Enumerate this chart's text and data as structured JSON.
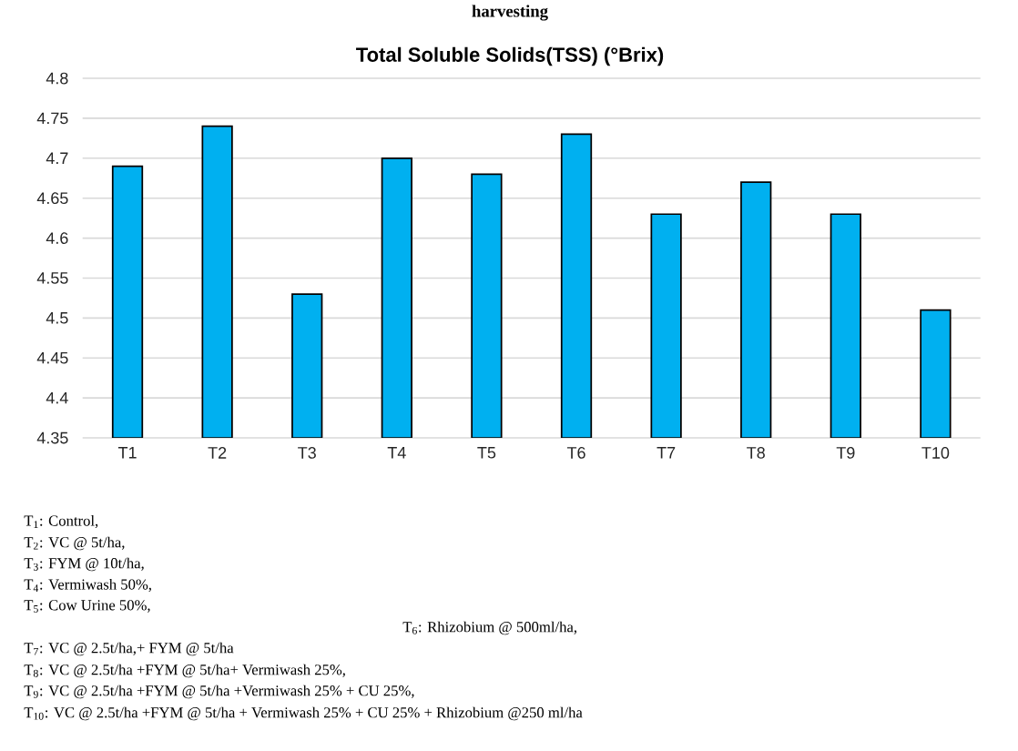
{
  "chart_data": {
    "type": "bar",
    "title": "Total Soluble Solids(TSS)  (°Brix)",
    "categories": [
      "T1",
      "T2",
      "T3",
      "T4",
      "T5",
      "T6",
      "T7",
      "T8",
      "T9",
      "T10"
    ],
    "values": [
      4.69,
      4.74,
      4.53,
      4.7,
      4.68,
      4.73,
      4.63,
      4.67,
      4.63,
      4.51
    ],
    "color": "#00b0f0",
    "ylim": [
      4.35,
      4.8
    ],
    "yticks": [
      4.35,
      4.4,
      4.45,
      4.5,
      4.55,
      4.6,
      4.65,
      4.7,
      4.75,
      4.8
    ],
    "grid": "y",
    "annotations": [
      "harvesting",
      "T$_{1}$: Control,",
      "T$_{2}$: VC @ 5t/ha,",
      "T$_{3}$: FYM @ 10t/ha,",
      "T$_{4}$: Vermiwash 50%,",
      "T$_{5}$: Cow Urine 50%,",
      "T$_{6}$: Rhizobium @ 500ml/ha,",
      "T$_{7}$: VC @ 2.5t/ha,+ FYM @ 5t/ha",
      "T$_{8}$: VC @ 2.5t/ha +FYM @ 5t/ha+ Vermiwash 25%,",
      "T$_{9}$: VC @ 2.5t/ha +FYM @ 5t/ha +Vermiwash 25% + CU 25%,",
      "T$_{10}$: VC @ 2.5t/ha +FYM @ 5t/ha + Vermiwash 25% + CU 25% + Rhizobium @250 ml/ha"
    ]
  }
}
